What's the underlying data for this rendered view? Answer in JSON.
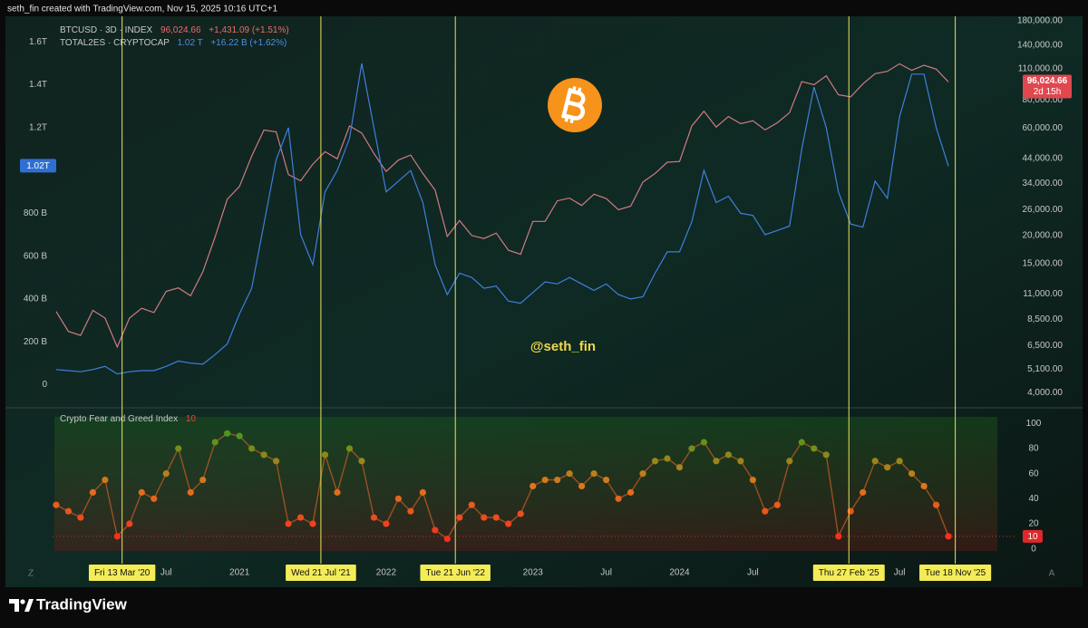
{
  "header": "seth_fin created with TradingView.com, Nov 15, 2025 10:16 UTC+1",
  "watermark": "@seth_fin",
  "brand": "TradingView",
  "corner_left": "Z",
  "corner_right": "A",
  "chart_data": [
    {
      "type": "line",
      "legend": "top-left",
      "grid": false,
      "xlim": [
        "2019-06",
        "2026-03"
      ],
      "x": [
        "2019-10",
        "2019-11",
        "2019-12",
        "2020-01",
        "2020-02",
        "2020-03",
        "2020-04",
        "2020-05",
        "2020-06",
        "2020-07",
        "2020-08",
        "2020-09",
        "2020-10",
        "2020-11",
        "2020-12",
        "2021-01",
        "2021-02",
        "2021-03",
        "2021-04",
        "2021-05",
        "2021-06",
        "2021-07",
        "2021-08",
        "2021-09",
        "2021-10",
        "2021-11",
        "2021-12",
        "2022-01",
        "2022-02",
        "2022-03",
        "2022-04",
        "2022-05",
        "2022-06",
        "2022-07",
        "2022-08",
        "2022-09",
        "2022-10",
        "2022-11",
        "2022-12",
        "2023-01",
        "2023-02",
        "2023-03",
        "2023-04",
        "2023-05",
        "2023-06",
        "2023-07",
        "2023-08",
        "2023-09",
        "2023-10",
        "2023-11",
        "2023-12",
        "2024-01",
        "2024-02",
        "2024-03",
        "2024-04",
        "2024-05",
        "2024-06",
        "2024-07",
        "2024-08",
        "2024-09",
        "2024-10",
        "2024-11",
        "2024-12",
        "2025-01",
        "2025-02",
        "2025-03",
        "2025-04",
        "2025-05",
        "2025-06",
        "2025-07",
        "2025-08",
        "2025-09",
        "2025-10",
        "2025-11"
      ],
      "ylim": [
        -100,
        1720
      ],
      "yticks": [
        0,
        {
          "value": 200,
          "label": "200 B"
        },
        {
          "value": 400,
          "label": "400 B"
        },
        {
          "value": 600,
          "label": "600 B"
        },
        {
          "value": 800,
          "label": "800 B"
        },
        {
          "value": 1200,
          "label": "1.2T"
        },
        {
          "value": 1400,
          "label": "1.4T"
        },
        {
          "value": 1600,
          "label": "1.6T"
        }
      ],
      "y2lim": [
        3500,
        188000
      ],
      "y2log": true,
      "y2ticks": [
        {
          "value": 4000,
          "label": "4,000.00"
        },
        {
          "value": 5100,
          "label": "5,100.00"
        },
        {
          "value": 6500,
          "label": "6,500.00"
        },
        {
          "value": 8500,
          "label": "8,500.00"
        },
        {
          "value": 11000,
          "label": "11,000.00"
        },
        {
          "value": 15000,
          "label": "15,000.00"
        },
        {
          "value": 20000,
          "label": "20,000.00"
        },
        {
          "value": 26000,
          "label": "26,000.00"
        },
        {
          "value": 34000,
          "label": "34,000.00"
        },
        {
          "value": 44000,
          "label": "44,000.00"
        },
        {
          "value": 60000,
          "label": "60,000.00"
        },
        {
          "value": 80000,
          "label": "80,000.00"
        },
        {
          "value": 110000,
          "label": "110,000.00"
        },
        {
          "value": 140000,
          "label": "140,000.00"
        },
        {
          "value": 180000,
          "label": "180,000.00"
        }
      ],
      "series": [
        {
          "name": "BTCUSD · 3D · INDEX",
          "color": "#d07b82",
          "axis": "y2",
          "last_label": "96,024.66",
          "change": "+1,431.09 (+1.51%)",
          "countdown": "2d 15h",
          "values": [
            9200,
            7500,
            7200,
            9300,
            8600,
            6400,
            8600,
            9500,
            9100,
            11300,
            11700,
            10800,
            13800,
            19700,
            29000,
            33000,
            45000,
            58800,
            57700,
            37300,
            35000,
            41500,
            47100,
            43800,
            61300,
            57000,
            46300,
            38500,
            43200,
            45500,
            37700,
            31800,
            19800,
            23300,
            20000,
            19400,
            20500,
            17200,
            16500,
            23100,
            23100,
            28500,
            29300,
            27200,
            30500,
            29200,
            26000,
            27000,
            34500,
            37700,
            42300,
            42600,
            61200,
            71300,
            60600,
            67500,
            62700,
            64600,
            58900,
            63300,
            70200,
            96400,
            93400,
            102400,
            84300,
            82500,
            94200,
            104600,
            107100,
            115700,
            108200,
            114000,
            109500,
            96024.66
          ]
        },
        {
          "name": "TOTAL2ES · CRYPTOCAP",
          "color": "#3f7fdc",
          "last_label": "1.02 T",
          "axis_label": "1.02T",
          "change": "+16.22 B (+1.62%)",
          "values": [
            70,
            65,
            60,
            70,
            85,
            50,
            60,
            65,
            65,
            85,
            110,
            100,
            95,
            140,
            190,
            330,
            450,
            750,
            1050,
            1200,
            700,
            560,
            900,
            1000,
            1150,
            1500,
            1200,
            900,
            950,
            1000,
            850,
            560,
            420,
            520,
            500,
            450,
            460,
            390,
            380,
            430,
            480,
            470,
            500,
            470,
            440,
            470,
            420,
            400,
            410,
            520,
            620,
            620,
            760,
            1000,
            850,
            880,
            800,
            790,
            700,
            720,
            740,
            1100,
            1390,
            1200,
            900,
            750,
            735,
            950,
            870,
            1250,
            1450,
            1450,
            1200,
            1020
          ]
        }
      ]
    },
    {
      "type": "line",
      "dots": true,
      "title": "Crypto Fear and Greed Index",
      "grid": false,
      "color_scale": [
        "#ff1f1f",
        "#e0751c",
        "#2f9d1d"
      ],
      "xlim": [
        "2019-06",
        "2026-03"
      ],
      "x": [
        "2019-10",
        "2019-11",
        "2019-12",
        "2020-01",
        "2020-02",
        "2020-03",
        "2020-04",
        "2020-05",
        "2020-06",
        "2020-07",
        "2020-08",
        "2020-09",
        "2020-10",
        "2020-11",
        "2020-12",
        "2021-01",
        "2021-02",
        "2021-03",
        "2021-04",
        "2021-05",
        "2021-06",
        "2021-07",
        "2021-08",
        "2021-09",
        "2021-10",
        "2021-11",
        "2021-12",
        "2022-01",
        "2022-02",
        "2022-03",
        "2022-04",
        "2022-05",
        "2022-06",
        "2022-07",
        "2022-08",
        "2022-09",
        "2022-10",
        "2022-11",
        "2022-12",
        "2023-01",
        "2023-02",
        "2023-03",
        "2023-04",
        "2023-05",
        "2023-06",
        "2023-07",
        "2023-08",
        "2023-09",
        "2023-10",
        "2023-11",
        "2023-12",
        "2024-01",
        "2024-02",
        "2024-03",
        "2024-04",
        "2024-05",
        "2024-06",
        "2024-07",
        "2024-08",
        "2024-09",
        "2024-10",
        "2024-11",
        "2024-12",
        "2025-01",
        "2025-02",
        "2025-03",
        "2025-04",
        "2025-05",
        "2025-06",
        "2025-07",
        "2025-08",
        "2025-09",
        "2025-10",
        "2025-11"
      ],
      "xticks": [
        {
          "value": "2020-07",
          "label": "Jul"
        },
        {
          "value": "2021-01",
          "label": "2021"
        },
        {
          "value": "2022-01",
          "label": "2022"
        },
        {
          "value": "2023-01",
          "label": "2023"
        },
        {
          "value": "2023-07",
          "label": "Jul"
        },
        {
          "value": "2024-01",
          "label": "2024"
        },
        {
          "value": "2024-07",
          "label": "Jul"
        },
        {
          "value": "2025-07",
          "label": "Jul"
        }
      ],
      "ylim": [
        -6,
        111
      ],
      "yticks": [
        0,
        20,
        40,
        60,
        80,
        100
      ],
      "series": [
        {
          "name": "Crypto Fear and Greed Index",
          "values": [
            35,
            30,
            25,
            45,
            55,
            10,
            20,
            45,
            40,
            60,
            80,
            45,
            55,
            85,
            92,
            90,
            80,
            75,
            70,
            20,
            25,
            20,
            75,
            45,
            80,
            70,
            25,
            20,
            40,
            30,
            45,
            15,
            8,
            25,
            35,
            25,
            25,
            20,
            28,
            50,
            55,
            55,
            60,
            50,
            60,
            55,
            40,
            45,
            60,
            70,
            72,
            65,
            80,
            85,
            70,
            75,
            70,
            55,
            30,
            35,
            70,
            85,
            80,
            75,
            10,
            30,
            45,
            70,
            65,
            70,
            60,
            50,
            35,
            10
          ]
        }
      ],
      "markers": [
        {
          "x": "2020-03-13",
          "label": "Fri 13 Mar '20"
        },
        {
          "x": "2021-07-21",
          "label": "Wed 21 Jul '21"
        },
        {
          "x": "2022-06-21",
          "label": "Tue 21 Jun '22"
        },
        {
          "x": "2025-02-27",
          "label": "Thu 27 Feb '25"
        },
        {
          "x": "2025-11-18",
          "label": "Tue 18 Nov '25"
        }
      ]
    }
  ]
}
